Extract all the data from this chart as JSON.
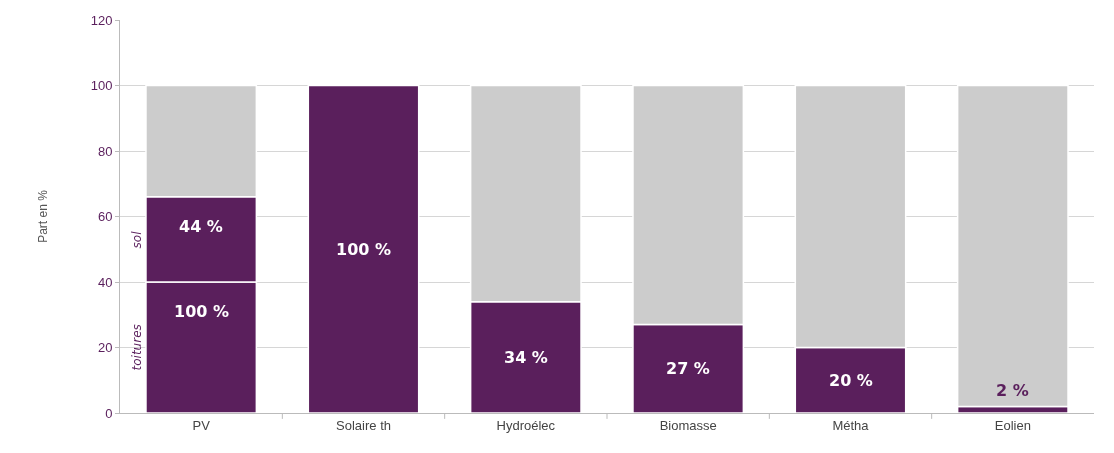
{
  "chart_data": {
    "type": "bar",
    "stacked": true,
    "ylabel": "Part en %",
    "categories": [
      "PV",
      "Solaire th",
      "Hydroélec",
      "Biomasse",
      "Métha",
      "Eolien"
    ],
    "series": [
      {
        "name": "toitures",
        "color": "#5a1f5c",
        "values": [
          40,
          100,
          34,
          27,
          20,
          2
        ],
        "value_labels": [
          null,
          "100 %",
          "34 %",
          "27 %",
          "20 %",
          "2 %"
        ]
      },
      {
        "name": "sol",
        "color": "#5a1f5c",
        "values": [
          26,
          0,
          0,
          0,
          0,
          0
        ]
      },
      {
        "color": "#cccccc",
        "values": [
          34,
          0,
          66,
          73,
          80,
          98
        ]
      }
    ],
    "annotations": [
      {
        "text": "100 %",
        "x": "PV",
        "y": 40
      },
      {
        "text": "44 %",
        "x": "PV",
        "y": 66
      }
    ],
    "ylim": [
      0,
      120
    ],
    "yticks": [
      0,
      20,
      40,
      60,
      80,
      100,
      120
    ],
    "grid": "y",
    "legend": false
  }
}
